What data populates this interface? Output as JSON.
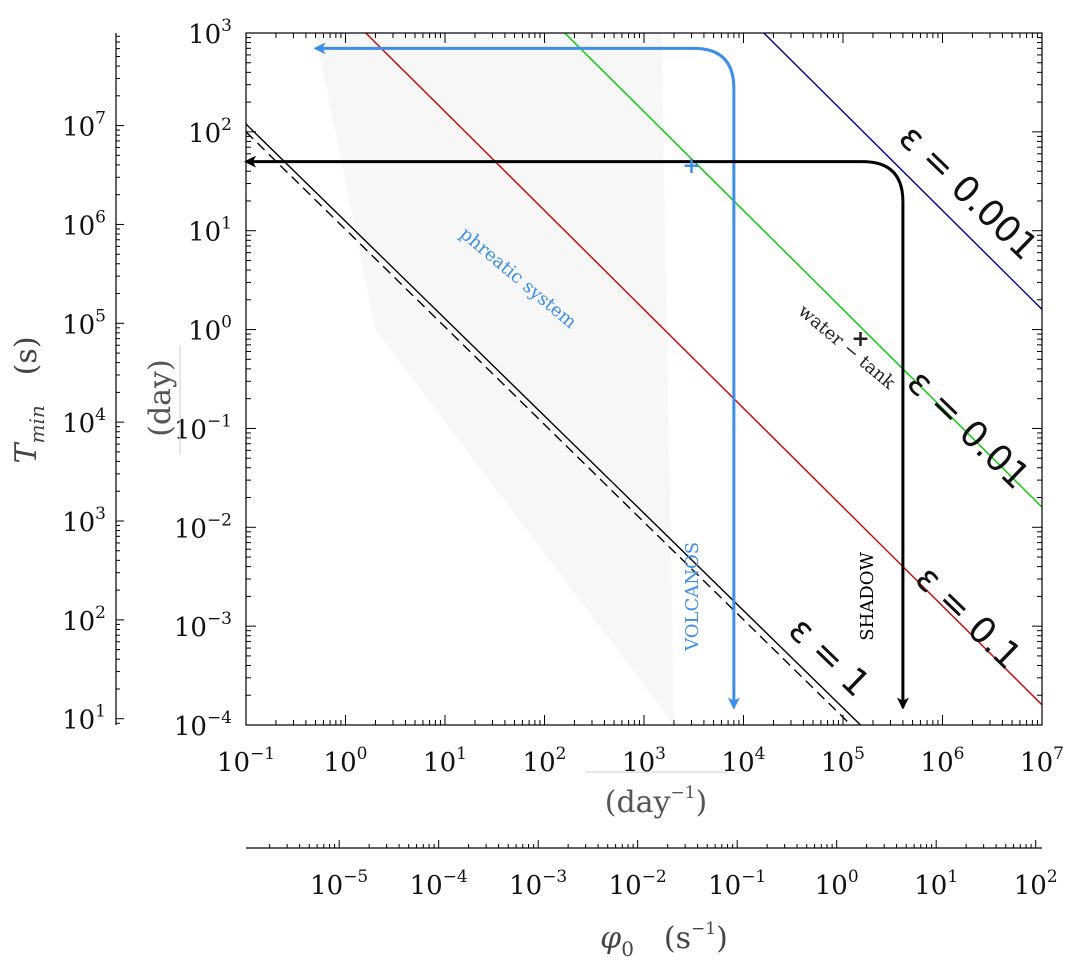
{
  "chart_data": {
    "type": "line",
    "x_scale": "log",
    "y_scale": "log",
    "xlim": [
      0.1,
      10000000
    ],
    "ylim": [
      0.0001,
      1000
    ],
    "grid": false,
    "x_ticks": [
      {
        "value": 0.1,
        "base": "10",
        "exp": "−1"
      },
      {
        "value": 1,
        "base": "10",
        "exp": "0"
      },
      {
        "value": 10,
        "base": "10",
        "exp": "1"
      },
      {
        "value": 100,
        "base": "10",
        "exp": "2"
      },
      {
        "value": 1000,
        "base": "10",
        "exp": "3"
      },
      {
        "value": 10000,
        "base": "10",
        "exp": "4"
      },
      {
        "value": 100000,
        "base": "10",
        "exp": "5"
      },
      {
        "value": 1000000,
        "base": "10",
        "exp": "6"
      },
      {
        "value": 10000000,
        "base": "10",
        "exp": "7"
      }
    ],
    "y_ticks": [
      {
        "value": 0.0001,
        "base": "10",
        "exp": "−4"
      },
      {
        "value": 0.001,
        "base": "10",
        "exp": "−3"
      },
      {
        "value": 0.01,
        "base": "10",
        "exp": "−2"
      },
      {
        "value": 0.1,
        "base": "10",
        "exp": "−1"
      },
      {
        "value": 1,
        "base": "10",
        "exp": "0"
      },
      {
        "value": 10,
        "base": "10",
        "exp": "1"
      },
      {
        "value": 100,
        "base": "10",
        "exp": "2"
      },
      {
        "value": 1000,
        "base": "10",
        "exp": "3"
      }
    ],
    "x_unit_label": {
      "base": "(day",
      "exp": "−1",
      "close": ")"
    },
    "y_unit_label": "(day)",
    "secondary_x_axis": {
      "label": {
        "symbol": "φ",
        "sub": "0",
        "unit": "(s",
        "unit_exp": "−1",
        "close": ")"
      },
      "ticks": [
        {
          "value": 1e-05,
          "base": "10",
          "exp": "−5"
        },
        {
          "value": 0.0001,
          "base": "10",
          "exp": "−4"
        },
        {
          "value": 0.001,
          "base": "10",
          "exp": "−3"
        },
        {
          "value": 0.01,
          "base": "10",
          "exp": "−2"
        },
        {
          "value": 0.1,
          "base": "10",
          "exp": "−1"
        },
        {
          "value": 1,
          "base": "10",
          "exp": "0"
        },
        {
          "value": 10,
          "base": "10",
          "exp": "1"
        },
        {
          "value": 100,
          "base": "10",
          "exp": "2"
        }
      ]
    },
    "secondary_y_axis": {
      "label": {
        "symbol": "T",
        "sub": "min",
        "unit": "(s)"
      },
      "ticks": [
        {
          "value": 10,
          "base": "10",
          "exp": "1"
        },
        {
          "value": 100,
          "base": "10",
          "exp": "2"
        },
        {
          "value": 1000,
          "base": "10",
          "exp": "3"
        },
        {
          "value": 10000,
          "base": "10",
          "exp": "4"
        },
        {
          "value": 100000,
          "base": "10",
          "exp": "5"
        },
        {
          "value": 1000000,
          "base": "10",
          "exp": "6"
        },
        {
          "value": 10000000,
          "base": "10",
          "exp": "7"
        }
      ]
    },
    "series": [
      {
        "name": "ε = 1",
        "color": "#000000",
        "style": "solid",
        "points": [
          [
            0.1,
            120
          ],
          [
            150000,
            0.0001
          ]
        ]
      },
      {
        "name": "ε = 1",
        "color": "#000000",
        "style": "dashed",
        "points": [
          [
            0.1,
            100
          ],
          [
            120000,
            0.0001
          ]
        ]
      },
      {
        "name": "ε = 0.1",
        "color": "#cc0000",
        "style": "solid",
        "points": [
          [
            1.6,
            1000
          ],
          [
            10000000,
            0.00016
          ]
        ]
      },
      {
        "name": "ε = 0.01",
        "color": "#00cc00",
        "style": "solid",
        "points": [
          [
            160,
            1000
          ],
          [
            10000000,
            0.016
          ]
        ]
      },
      {
        "name": "ε = 0.001",
        "color": "#000099",
        "style": "solid",
        "points": [
          [
            16000,
            1000
          ],
          [
            10000000,
            1.6
          ]
        ]
      }
    ],
    "shaded_region": {
      "color": "#f7f7f7",
      "points": [
        [
          0.5,
          1000
        ],
        [
          1500,
          1000
        ],
        [
          2000,
          0.0001
        ],
        [
          2,
          1
        ]
      ]
    },
    "curve_labels": [
      {
        "text": "ε = 1",
        "x": 60000,
        "y": 0.0004,
        "angle": 44
      },
      {
        "text": "ε = 0.1",
        "x": 1500000,
        "y": 0.001,
        "angle": 44
      },
      {
        "text": "ε = 0.01",
        "x": 1500000,
        "y": 0.08,
        "angle": 44
      },
      {
        "text": "ε = 0.001",
        "x": 1500000,
        "y": 20,
        "angle": 44
      }
    ],
    "arrows": [
      {
        "name": "phreatic",
        "color": "#3d8ee8",
        "vertical_x": 8000,
        "horizontal_y": 700,
        "y_end": 0.00015,
        "x_end": 0.5
      },
      {
        "name": "shadow",
        "color": "#000000",
        "vertical_x": 400000,
        "horizontal_y": 50,
        "y_end": 0.00015,
        "x_end": 0.1
      }
    ],
    "annotations": [
      {
        "text": "phreatic system",
        "color": "#3d8ee8",
        "x": 50,
        "y": 3,
        "angle": 40,
        "marker": {
          "x": 3000,
          "y": 45
        }
      },
      {
        "text": "water − tank",
        "color": "#222222",
        "x": 100000,
        "y": 0.6,
        "angle": 40,
        "marker": {
          "x": 150000,
          "y": 0.8
        }
      },
      {
        "text": "VOLCANOS",
        "color": "#3d8ee8",
        "x": 3500,
        "y": 0.002,
        "angle": -90
      },
      {
        "text": "SHADOW",
        "color": "#000000",
        "x": 200000,
        "y": 0.002,
        "angle": -90
      }
    ]
  }
}
